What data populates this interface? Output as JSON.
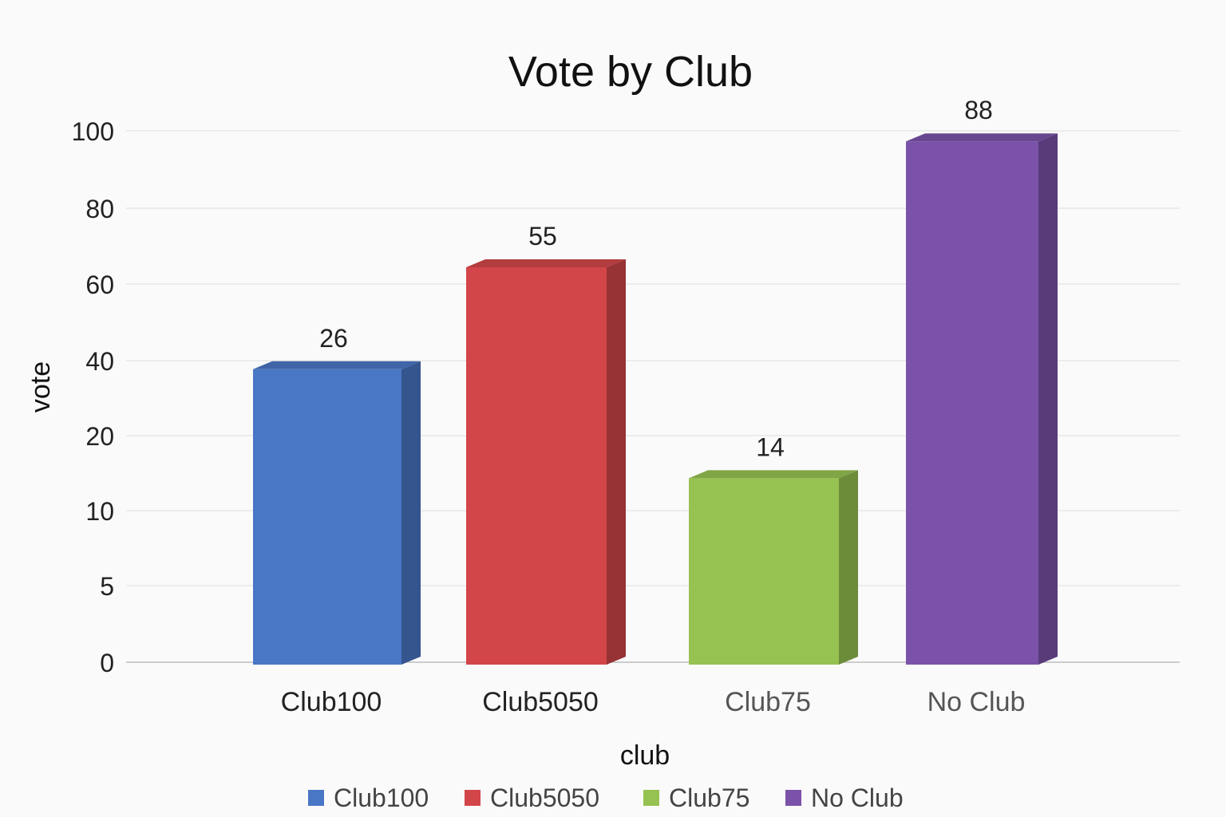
{
  "chart_data": {
    "type": "bar",
    "title": "Vote by Club",
    "xlabel": "club",
    "ylabel": "vote",
    "categories": [
      "Club100",
      "Club5050",
      "Club75",
      "No Club"
    ],
    "values": [
      26,
      55,
      14,
      88
    ],
    "data_labels": [
      "26",
      "55",
      "14",
      "88"
    ],
    "colors": [
      "#4a76c6",
      "#d24649",
      "#96c251",
      "#7b52a9"
    ],
    "y_ticks": [
      {
        "label": "0",
        "value": 0
      },
      {
        "label": "5",
        "value": 5
      },
      {
        "label": "10",
        "value": 10
      },
      {
        "label": "20",
        "value": 20
      },
      {
        "label": "40",
        "value": 40
      },
      {
        "label": "60",
        "value": 60
      },
      {
        "label": "80",
        "value": 80
      },
      {
        "label": "100",
        "value": 100
      }
    ],
    "ylim": [
      0,
      100
    ],
    "grid": true,
    "legend": {
      "position": "bottom",
      "entries": [
        "Club100",
        "Club5050",
        "Club75",
        "No Club"
      ]
    }
  }
}
